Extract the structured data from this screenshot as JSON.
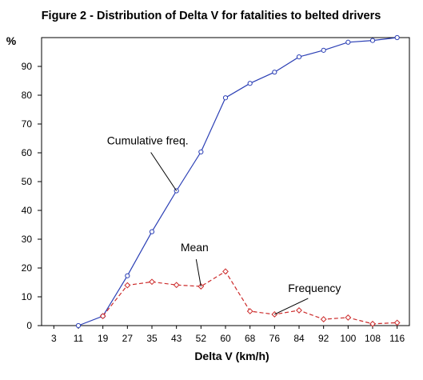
{
  "chart_data": {
    "type": "line",
    "title": "Figure 2 - Distribution of Delta V for fatalities to belted drivers",
    "xlabel": "Delta V (km/h)",
    "ylabel": "%",
    "categories": [
      "3",
      "11",
      "19",
      "27",
      "35",
      "43",
      "52",
      "60",
      "68",
      "76",
      "84",
      "92",
      "100",
      "108",
      "116"
    ],
    "ylim": [
      0,
      100
    ],
    "yticks": [
      0,
      10,
      20,
      30,
      40,
      50,
      60,
      70,
      80,
      90
    ],
    "grid": false,
    "series": [
      {
        "name": "Cumulative freq.",
        "color": "#2b3fb5",
        "line_style": "solid",
        "marker": "circle",
        "values": [
          null,
          0,
          3.3,
          17.3,
          32.6,
          46.8,
          60.3,
          79.1,
          84.1,
          88.0,
          93.3,
          95.6,
          98.4,
          99.0,
          100
        ]
      },
      {
        "name": "Frequency",
        "color": "#cc2b2b",
        "line_style": "dashed",
        "marker": "diamond",
        "values": [
          null,
          null,
          3.3,
          14.0,
          15.2,
          14.1,
          13.6,
          18.8,
          5.0,
          3.9,
          5.3,
          2.2,
          2.8,
          0.6,
          1.0
        ]
      }
    ],
    "annotations": [
      {
        "text": "Cumulative freq.",
        "target_series": 0,
        "target_index": 5
      },
      {
        "text": "Mean",
        "target_series": 1,
        "target_index": 6
      },
      {
        "text": "Frequency",
        "target_series": 1,
        "target_index": 9
      }
    ]
  }
}
